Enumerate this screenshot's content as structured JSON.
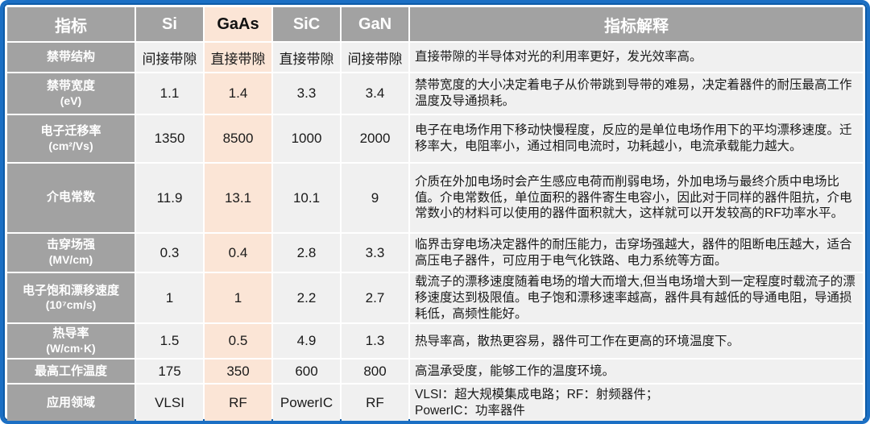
{
  "colors": {
    "border_blue": "#1b6fc4",
    "header_gray": "#a2a2a2",
    "highlight_peach": "#fbe5d6",
    "cell_gray": "#f0f0f0"
  },
  "header": {
    "metric": "指标",
    "si": "Si",
    "gaas": "GaAs",
    "sic": "SiC",
    "gan": "GaN",
    "explain": "指标解释"
  },
  "rows": [
    {
      "label": "禁带结构",
      "unit": "",
      "si": "间接带隙",
      "gaas": "直接带隙",
      "sic": "直接带隙",
      "gan": "间接带隙",
      "desc": "直接带隙的半导体对光的利用率更好，发光效率高。"
    },
    {
      "label": "禁带宽度",
      "unit": "(eV)",
      "si": "1.1",
      "gaas": "1.4",
      "sic": "3.3",
      "gan": "3.4",
      "desc": "禁带宽度的大小决定着电子从价带跳到导带的难易，决定着器件的耐压最高工作温度及导通损耗。"
    },
    {
      "label": "电子迁移率",
      "unit": "(cm²/Vs)",
      "si": "1350",
      "gaas": "8500",
      "sic": "1000",
      "gan": "2000",
      "desc": "电子在电场作用下移动快慢程度，反应的是单位电场作用下的平均漂移速度。迁移率大，电阻率小，通过相同电流时，功耗越小，电流承载能力越大。"
    },
    {
      "label": "介电常数",
      "unit": "",
      "si": "11.9",
      "gaas": "13.1",
      "sic": "10.1",
      "gan": "9",
      "desc": "介质在外加电场时会产生感应电荷而削弱电场，外加电场与最终介质中电场比值。介电常数低，单位面积的器件寄生电容小，因此对于同样的器件阻抗，介电常数小的材料可以使用的器件面积就大，这样就可以开发较高的RF功率水平。"
    },
    {
      "label": "击穿场强",
      "unit": "(MV/cm)",
      "si": "0.3",
      "gaas": "0.4",
      "sic": "2.8",
      "gan": "3.3",
      "desc": "临界击穿电场决定器件的耐压能力，击穿场强越大，器件的阻断电压越大，适合高压电子器件，可应用于电气化铁路、电力系统等方面。"
    },
    {
      "label": "电子饱和漂移速度",
      "unit": "(10⁷cm/s)",
      "si": "1",
      "gaas": "1",
      "sic": "2.2",
      "gan": "2.7",
      "desc": "载流子的漂移速度随着电场的增大而增大,但当电场增大到一定程度时载流子的漂移速度达到极限值。电子饱和漂移速率越高，器件具有越低的导通电阻，导通损耗低，高频性能好。"
    },
    {
      "label": "热导率",
      "unit": "(W/cm·K)",
      "si": "1.5",
      "gaas": "0.5",
      "sic": "4.9",
      "gan": "1.3",
      "desc": "热导率高，散热更容易，器件可工作在更高的环境温度下。"
    },
    {
      "label": "最高工作温度",
      "unit": "",
      "si": "175",
      "gaas": "350",
      "sic": "600",
      "gan": "800",
      "desc": "高温承受度，能够工作的温度环境。"
    },
    {
      "label": "应用领域",
      "unit": "",
      "si": "VLSI",
      "gaas": "RF",
      "sic": "PowerIC",
      "gan": "RF",
      "desc": "VLSI：超大规模集成电路；RF：射频器件；\nPowerIC：功率器件"
    }
  ]
}
